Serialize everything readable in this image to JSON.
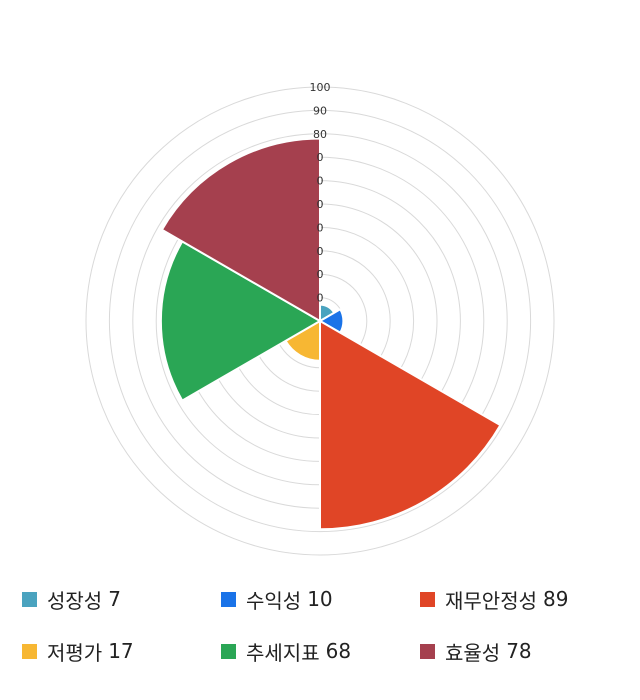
{
  "chart_data": {
    "type": "polar-area",
    "rlim": [
      0,
      100
    ],
    "ticks": [
      "100",
      "90",
      "80",
      "0",
      "0",
      "0",
      "0",
      "0",
      "0",
      "0"
    ],
    "grid": true,
    "legend_position": "bottom",
    "categories": [
      "성장성",
      "수익성",
      "재무안정성",
      "저평가",
      "추세지표",
      "효율성"
    ],
    "values": [
      7,
      10,
      89,
      17,
      68,
      78
    ],
    "colors": [
      "#4aa3bf",
      "#1a73e8",
      "#e04526",
      "#f7b733",
      "#2aa655",
      "#a5404e"
    ]
  }
}
